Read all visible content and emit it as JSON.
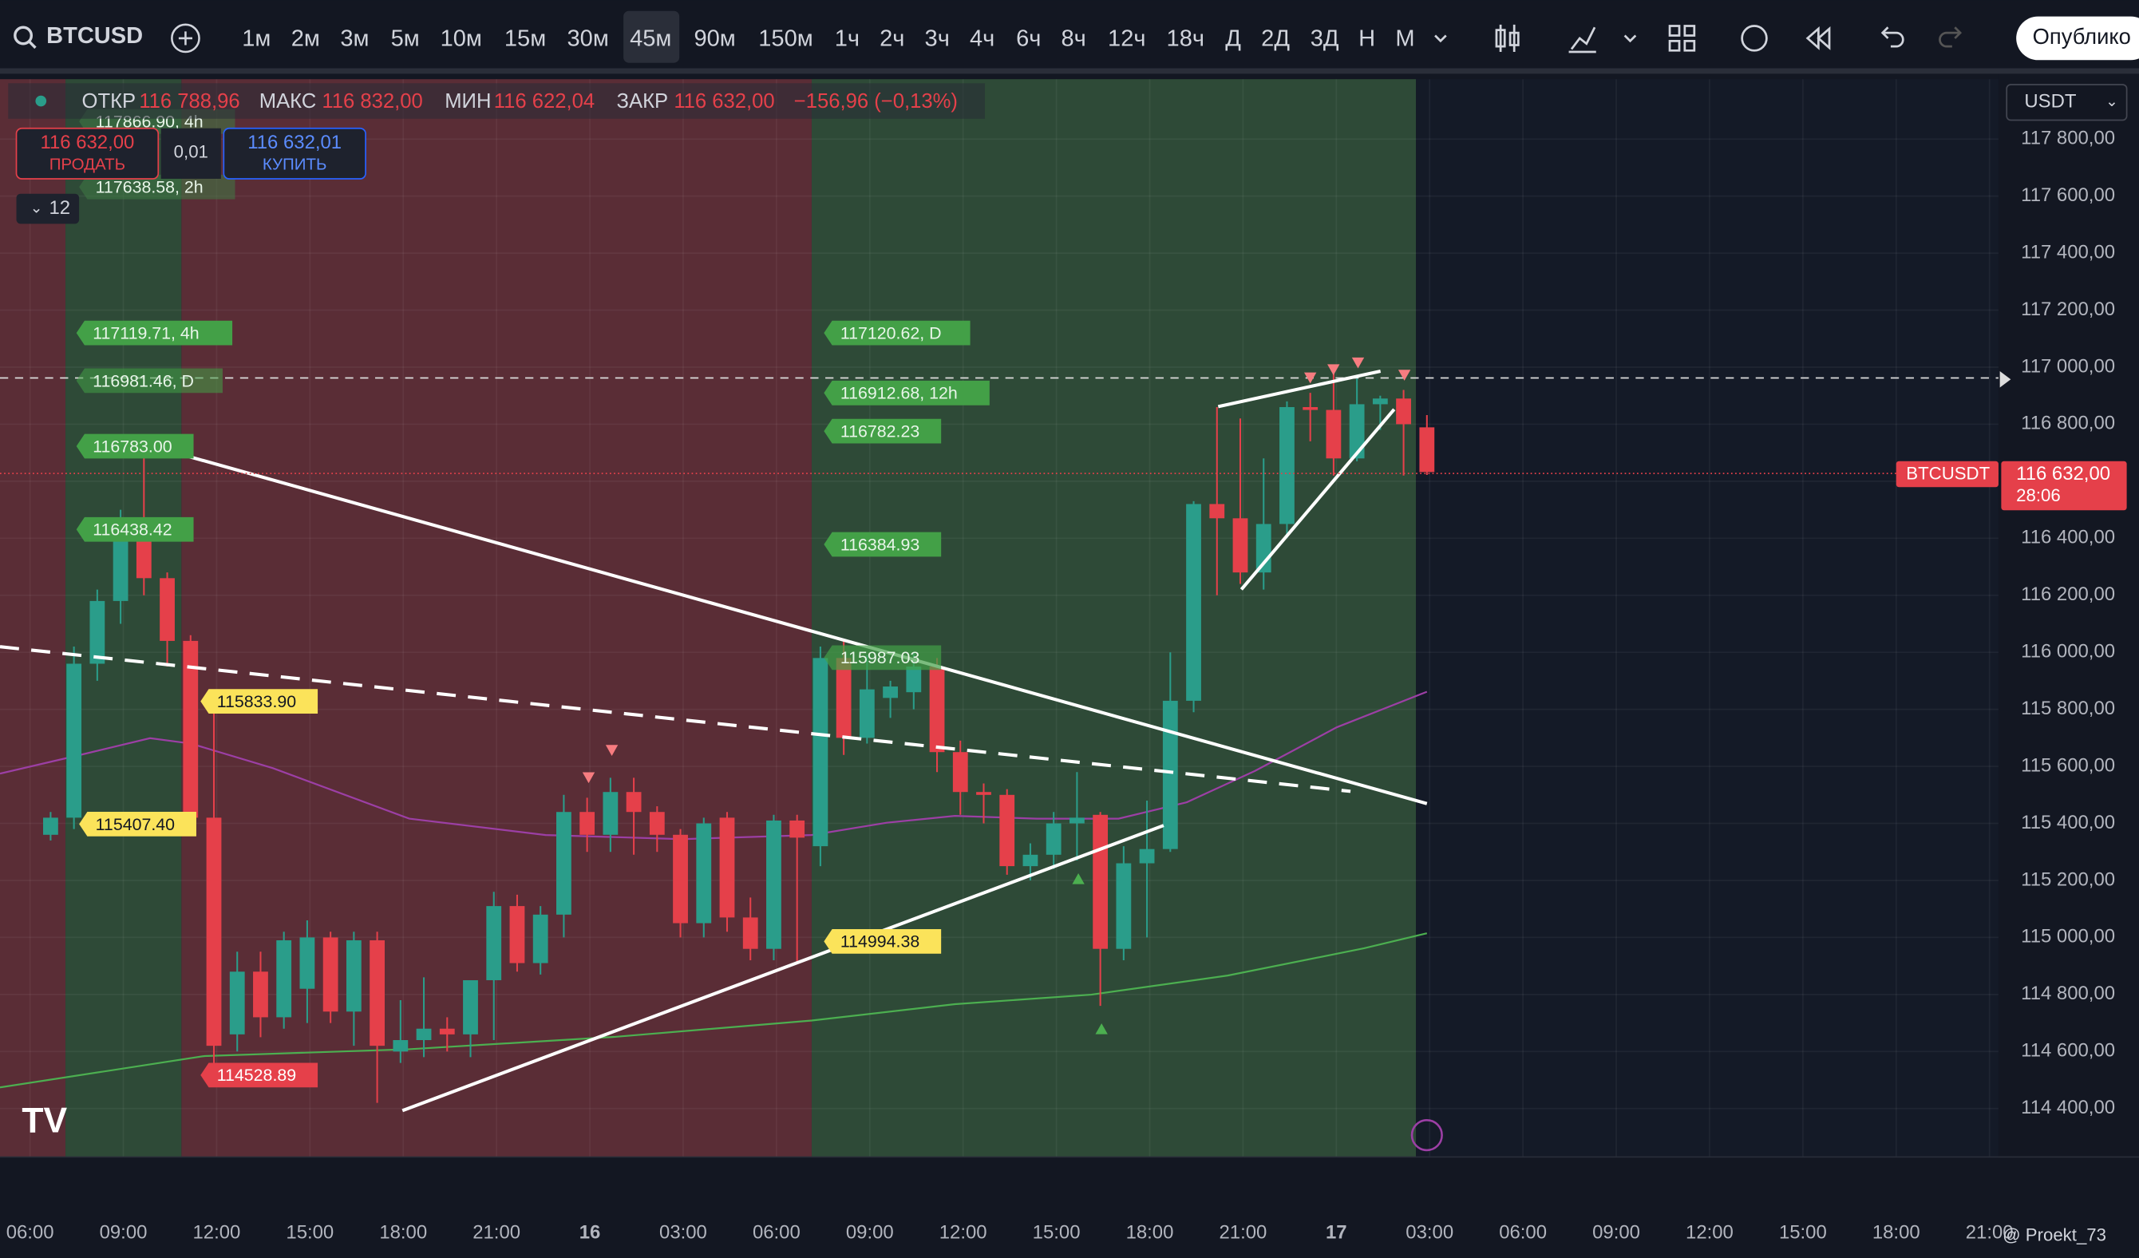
{
  "toolbar": {
    "symbol": "BTCUSD",
    "intervals": [
      "1м",
      "2м",
      "3м",
      "5м",
      "10м",
      "15м",
      "30м",
      "45м",
      "90м",
      "150м",
      "1ч",
      "2ч",
      "3ч",
      "4ч",
      "6ч",
      "8ч",
      "12ч",
      "18ч",
      "Д",
      "2Д",
      "3Д",
      "Н",
      "М"
    ],
    "publish": "Опублико"
  },
  "legend": {
    "open_label": "ОТКР",
    "open": "116 788,96",
    "high_label": "МАКС",
    "high": "116 832,00",
    "low_label": "МИН",
    "low": "116 622,04",
    "close_label": "ЗАКР",
    "close": "116 632,00",
    "change": "−156,96 (−0,13%)"
  },
  "trade": {
    "sell_price": "116 632,00",
    "sell": "ПРОДАТЬ",
    "qty": "0,01",
    "buy_price": "116 632,01",
    "buy": "КУПИТЬ",
    "indicators": "12"
  },
  "currency": "USDT",
  "price_tag": {
    "symbol": "BTCUSDT",
    "price": "116 632,00",
    "timer": "28:06"
  },
  "chart": {
    "type": "candlestick",
    "up_color": "#2a9d8a",
    "down_color": "#e5404a",
    "ylim": [
      114230,
      118010
    ],
    "yticks": [
      {
        "value": 114400,
        "label": "114 400,00"
      },
      {
        "value": 114600,
        "label": "114 600,00"
      },
      {
        "value": 114800,
        "label": "114 800,00"
      },
      {
        "value": 115000,
        "label": "115 000,00"
      },
      {
        "value": 115200,
        "label": "115 200,00"
      },
      {
        "value": 115400,
        "label": "115 400,00"
      },
      {
        "value": 115600,
        "label": "115 600,00"
      },
      {
        "value": 115800,
        "label": "115 800,00"
      },
      {
        "value": 116000,
        "label": "116 000,00"
      },
      {
        "value": 116200,
        "label": "116 200,00"
      },
      {
        "value": 116400,
        "label": "116 400,00"
      },
      {
        "value": 116600,
        "label": "116 600,00"
      },
      {
        "value": 116800,
        "label": "116 800,00"
      },
      {
        "value": 117000,
        "label": "117 000,00"
      },
      {
        "value": 117200,
        "label": "117 200,00"
      },
      {
        "value": 117400,
        "label": "117 400,00"
      },
      {
        "value": 117600,
        "label": "117 600,00"
      },
      {
        "value": 117800,
        "label": "117 800,00"
      }
    ],
    "xticks": [
      "06:00",
      "09:00",
      "12:00",
      "15:00",
      "18:00",
      "21:00",
      "16",
      "03:00",
      "06:00",
      "09:00",
      "12:00",
      "15:00",
      "18:00",
      "21:00",
      "17",
      "03:00",
      "06:00",
      "09:00",
      "12:00",
      "15:00",
      "18:00",
      "21:00"
    ],
    "candles": [
      [
        115360,
        115440,
        115340,
        115420
      ],
      [
        115420,
        116020,
        115380,
        115960
      ],
      [
        115960,
        116220,
        115900,
        116180
      ],
      [
        116180,
        116500,
        116100,
        116460
      ],
      [
        116460,
        116710,
        116200,
        116260
      ],
      [
        116260,
        116280,
        115950,
        116040
      ],
      [
        116040,
        116060,
        115360,
        115420
      ],
      [
        115420,
        115850,
        114520,
        114620
      ],
      [
        114660,
        114950,
        114600,
        114880
      ],
      [
        114880,
        114950,
        114650,
        114720
      ],
      [
        114720,
        115020,
        114680,
        114990
      ],
      [
        114820,
        115060,
        114700,
        115000
      ],
      [
        115000,
        115020,
        114700,
        114740
      ],
      [
        114740,
        115020,
        114620,
        114990
      ],
      [
        114990,
        115020,
        114420,
        114620
      ],
      [
        114600,
        114780,
        114560,
        114640
      ],
      [
        114640,
        114860,
        114580,
        114680
      ],
      [
        114680,
        114720,
        114600,
        114660
      ],
      [
        114660,
        114850,
        114580,
        114850
      ],
      [
        114850,
        115160,
        114640,
        115110
      ],
      [
        115110,
        115150,
        114880,
        114910
      ],
      [
        114910,
        115110,
        114870,
        115080
      ],
      [
        115080,
        115500,
        115000,
        115440
      ],
      [
        115440,
        115490,
        115300,
        115360
      ],
      [
        115360,
        115560,
        115300,
        115510
      ],
      [
        115510,
        115560,
        115290,
        115440
      ],
      [
        115440,
        115460,
        115300,
        115360
      ],
      [
        115360,
        115380,
        115000,
        115050
      ],
      [
        115050,
        115420,
        115000,
        115400
      ],
      [
        115420,
        115440,
        115020,
        115070
      ],
      [
        115070,
        115140,
        114920,
        114960
      ],
      [
        114960,
        115430,
        114920,
        115410
      ],
      [
        115410,
        115430,
        114910,
        115350
      ],
      [
        115320,
        116020,
        115250,
        115980
      ],
      [
        115980,
        116040,
        115640,
        115700
      ],
      [
        115700,
        115990,
        115680,
        115870
      ],
      [
        115840,
        115900,
        115770,
        115880
      ],
      [
        115860,
        116000,
        115800,
        115950
      ],
      [
        115950,
        115980,
        115580,
        115650
      ],
      [
        115650,
        115690,
        115430,
        115510
      ],
      [
        115510,
        115540,
        115400,
        115500
      ],
      [
        115500,
        115520,
        115220,
        115250
      ],
      [
        115250,
        115330,
        115200,
        115290
      ],
      [
        115290,
        115440,
        115240,
        115400
      ],
      [
        115400,
        115580,
        115270,
        115420
      ],
      [
        115430,
        115440,
        114760,
        114960
      ],
      [
        114960,
        115320,
        114920,
        115260
      ],
      [
        115260,
        115480,
        115000,
        115310
      ],
      [
        115310,
        116000,
        115300,
        115830
      ],
      [
        115830,
        116530,
        115790,
        116520
      ],
      [
        116520,
        116860,
        116200,
        116470
      ],
      [
        116470,
        116820,
        116240,
        116280
      ],
      [
        116280,
        116680,
        116220,
        116450
      ],
      [
        116450,
        116880,
        116400,
        116860
      ],
      [
        116860,
        116910,
        116740,
        116850
      ],
      [
        116850,
        116980,
        116620,
        116680
      ],
      [
        116680,
        116960,
        116670,
        116870
      ],
      [
        116870,
        116900,
        116780,
        116890
      ],
      [
        116890,
        116920,
        116620,
        116800
      ],
      [
        116788.96,
        116832,
        116622.04,
        116632
      ]
    ],
    "tags": [
      "117866.90, 4h",
      "117638.58, 2h",
      "117119.71, 4h",
      "116981.46, D",
      "116783.00",
      "116438.42",
      "115833.90",
      "115407.40",
      "114528.89",
      "117120.62, D",
      "116912.68, 12h",
      "116782.23",
      "116384.93",
      "115987.03",
      "114994.38"
    ]
  },
  "footer": {
    "user": "@ Proekt_73"
  }
}
